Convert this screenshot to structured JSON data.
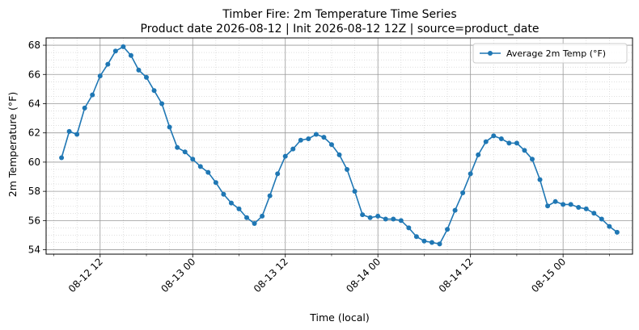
{
  "chart_data": {
    "type": "line",
    "title": "Timber Fire: 2m Temperature Time Series",
    "subtitle": "Product date 2026-08-12 | Init 2026-08-12 12Z | source=product_date",
    "xlabel": "Time (local)",
    "ylabel": "2m Temperature (°F)",
    "x_start": "2026-08-12 07:00",
    "x_step_hours": 1,
    "xlim": [
      "2026-08-12 05:00",
      "2026-08-15 09:00"
    ],
    "ylim": [
      53.7,
      68.5
    ],
    "y_ticks": [
      54,
      56,
      58,
      60,
      62,
      64,
      66,
      68
    ],
    "x_ticks": [
      "08-12 12",
      "08-13 00",
      "08-13 12",
      "08-14 00",
      "08-14 12",
      "08-15 00"
    ],
    "grid": true,
    "legend_position": "top-right",
    "series": [
      {
        "name": "Average 2m Temp (°F)",
        "color": "#1f77b4",
        "marker": "circle",
        "values": [
          60.3,
          62.1,
          61.9,
          63.7,
          64.6,
          65.9,
          66.7,
          67.6,
          67.9,
          67.3,
          66.3,
          65.8,
          64.9,
          64.0,
          62.4,
          61.0,
          60.7,
          60.2,
          59.7,
          59.3,
          58.6,
          57.8,
          57.2,
          56.8,
          56.2,
          55.8,
          56.3,
          57.7,
          59.2,
          60.4,
          60.9,
          61.5,
          61.6,
          61.9,
          61.7,
          61.2,
          60.5,
          59.5,
          58.0,
          56.4,
          56.2,
          56.3,
          56.1,
          56.1,
          56.0,
          55.5,
          54.9,
          54.6,
          54.5,
          54.4,
          55.4,
          56.7,
          57.9,
          59.2,
          60.5,
          61.4,
          61.8,
          61.6,
          61.3,
          61.3,
          60.8,
          60.2,
          58.8,
          57.0,
          57.3,
          57.1,
          57.1,
          56.9,
          56.8,
          56.5,
          56.1,
          55.6,
          55.2
        ]
      }
    ]
  }
}
